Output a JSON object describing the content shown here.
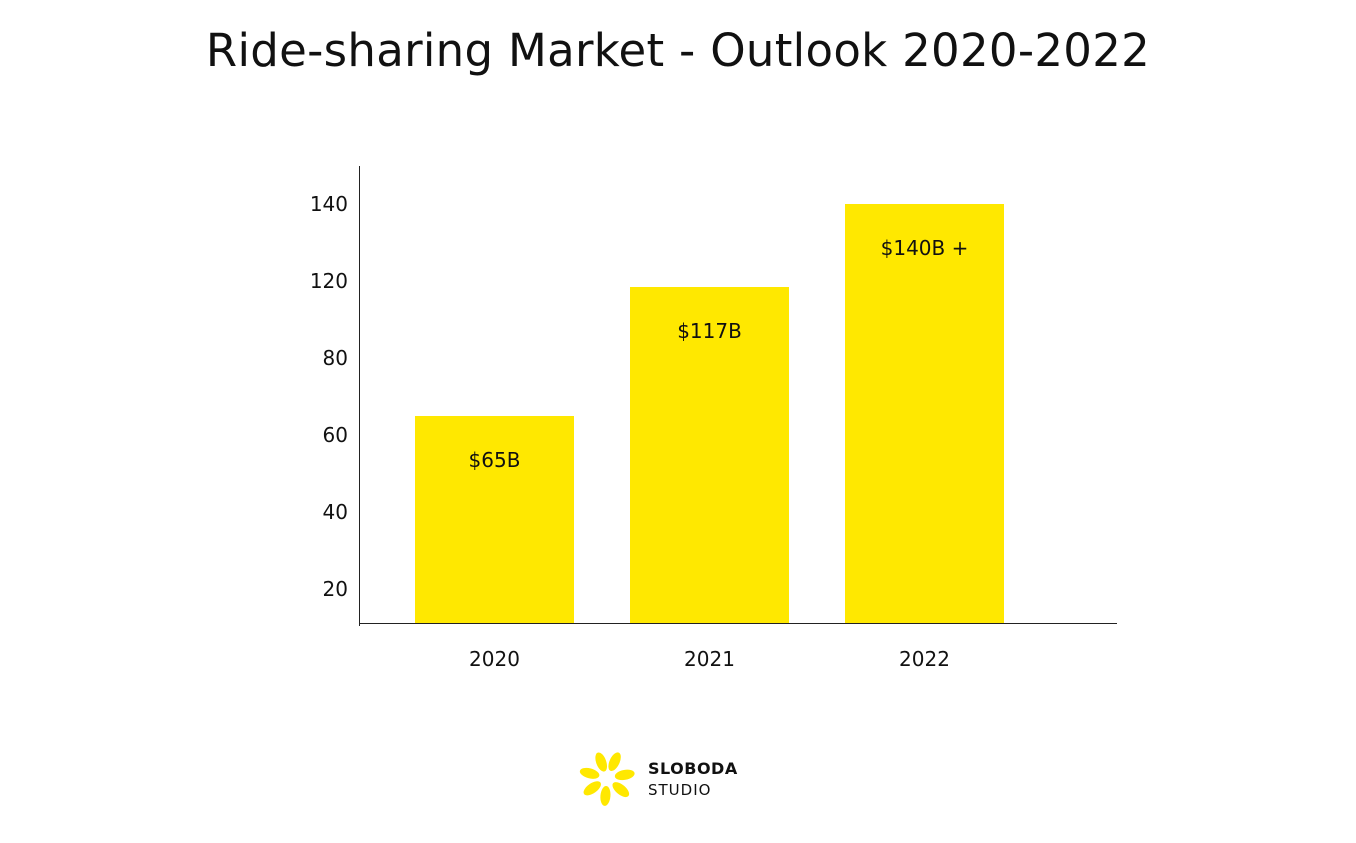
{
  "chart_data": {
    "type": "bar",
    "title": "Ride-sharing Market - Outlook 2020-2022",
    "categories": [
      "2020",
      "2021",
      "2022"
    ],
    "values": [
      65,
      117,
      140
    ],
    "data_labels": [
      "$65B",
      "$117B",
      "$140B +"
    ],
    "y_ticks": [
      "20",
      "40",
      "60",
      "80",
      "120",
      "140"
    ],
    "y_tick_values": [
      20,
      40,
      60,
      80,
      120,
      140
    ],
    "xlabel": "",
    "ylabel": "",
    "grid": false,
    "bar_color": "#FFE800"
  },
  "logo": {
    "line1": "SLOBODA",
    "line2": "STUDIO",
    "color": "#FFE800"
  }
}
